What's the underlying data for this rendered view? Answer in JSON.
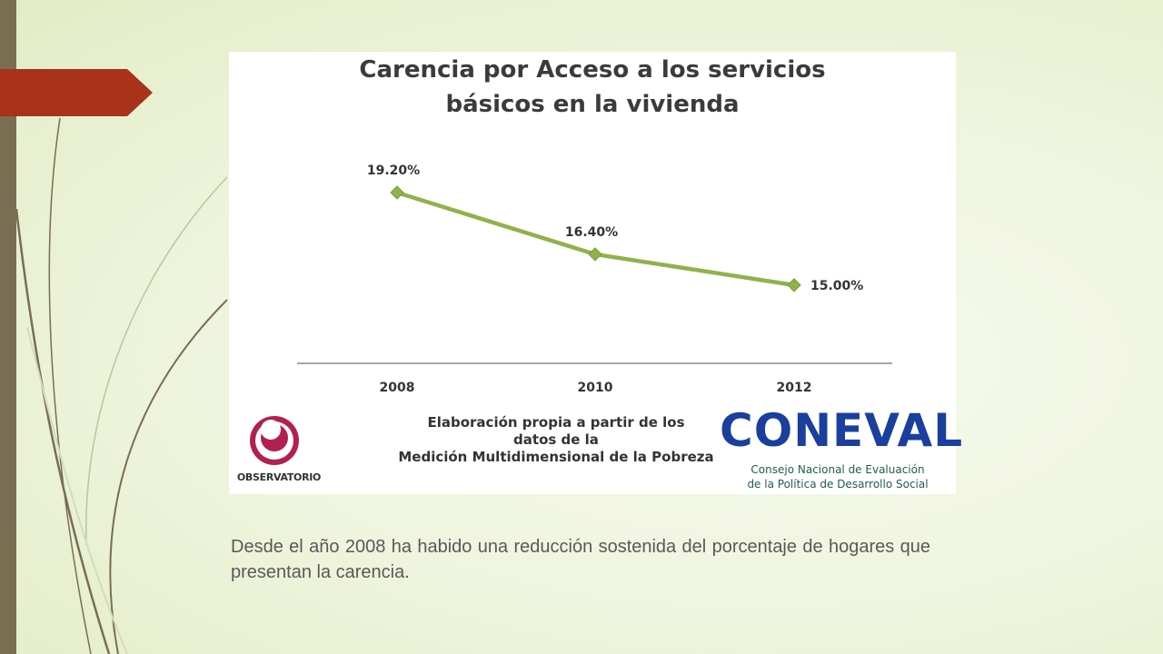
{
  "chart_data": {
    "type": "line",
    "title_lines": [
      "Carencia por Acceso a los servicios",
      "básicos en la vivienda"
    ],
    "categories": [
      "2008",
      "2010",
      "2012"
    ],
    "values": [
      19.2,
      16.4,
      15.0
    ],
    "data_labels": [
      "19.20%",
      "16.40%",
      "15.00%"
    ],
    "ylim": [
      0,
      22
    ],
    "grid": false,
    "legend": "none",
    "series_color": "#8fb24a"
  },
  "credit": {
    "lines": [
      "Elaboración propia a partir de los",
      "datos de la",
      "Medición Multidimensional de la Pobreza"
    ]
  },
  "logos": {
    "observatorio": {
      "text": "OBSERVATORIO",
      "color": "#b3204f"
    },
    "coneval": {
      "word": "CONEVAL",
      "subtitle_lines": [
        "Consejo Nacional de Evaluación",
        "de la Política de Desarrollo Social"
      ],
      "color": "#1a3f9c",
      "accent": "#2e9a4a"
    }
  },
  "caption": "Desde el año 2008 ha habido una reducción sostenida del porcentaje de hogares que presentan la carencia.",
  "theme": {
    "accent_tab": "#a8321a",
    "left_bar": "#7a6e52"
  }
}
